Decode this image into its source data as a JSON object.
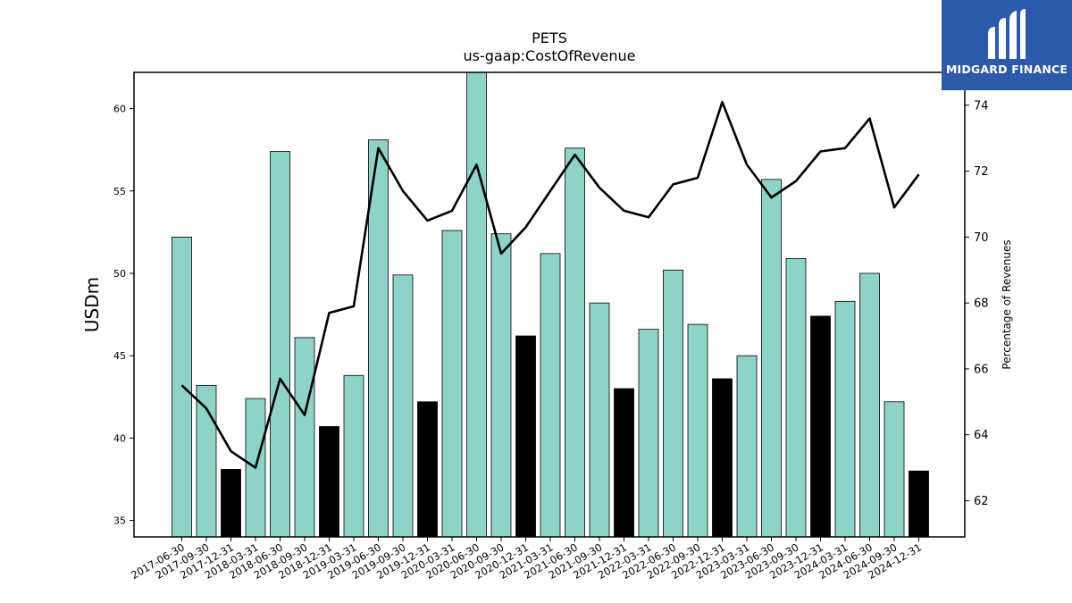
{
  "branding": {
    "logo_text": "MIDGARD FINANCE"
  },
  "chart_data": {
    "type": "bar",
    "title": "PETS",
    "subtitle": "us-gaap:CostOfRevenue",
    "ylabel": "USDm",
    "ylabel_right": "Percentage of Revenues",
    "ylim": [
      34,
      62.2
    ],
    "ylim_right": [
      60.9,
      75.0
    ],
    "yticks": [
      35,
      40,
      45,
      50,
      55,
      60
    ],
    "yticks_right": [
      62,
      64,
      66,
      68,
      70,
      72,
      74
    ],
    "grid": false,
    "colors": {
      "quarter": "#8dd3c7",
      "year_end": "#000000",
      "line": "#000000"
    },
    "categories": [
      "2017-06-30",
      "2017-09-30",
      "2017-12-31",
      "2018-03-31",
      "2018-06-30",
      "2018-09-30",
      "2018-12-31",
      "2019-03-31",
      "2019-06-30",
      "2019-09-30",
      "2019-12-31",
      "2020-03-31",
      "2020-06-30",
      "2020-09-30",
      "2020-12-31",
      "2021-03-31",
      "2021-06-30",
      "2021-09-30",
      "2021-12-31",
      "2022-03-31",
      "2022-06-30",
      "2022-09-30",
      "2022-12-31",
      "2023-03-31",
      "2023-06-30",
      "2023-09-30",
      "2023-12-31",
      "2024-03-31",
      "2024-06-30",
      "2024-09-30",
      "2024-12-31"
    ],
    "series": [
      {
        "type": "bar",
        "values": [
          52.2,
          43.2,
          38.1,
          42.4,
          57.4,
          46.1,
          40.7,
          43.8,
          58.1,
          49.9,
          42.2,
          52.6,
          62.3,
          52.4,
          46.2,
          51.2,
          57.6,
          48.2,
          43.0,
          46.6,
          50.2,
          46.9,
          43.6,
          45.0,
          55.7,
          50.9,
          47.4,
          48.3,
          50.0,
          42.2,
          38.0
        ],
        "year_end": [
          false,
          false,
          true,
          false,
          false,
          false,
          true,
          false,
          false,
          false,
          true,
          false,
          false,
          false,
          true,
          false,
          false,
          false,
          true,
          false,
          false,
          false,
          true,
          false,
          false,
          false,
          true,
          false,
          false,
          false,
          true
        ]
      },
      {
        "type": "line",
        "axis": "right",
        "values": [
          65.5,
          64.8,
          63.5,
          63.0,
          65.7,
          64.6,
          67.7,
          67.9,
          72.7,
          71.4,
          70.5,
          70.8,
          72.2,
          69.5,
          70.3,
          71.4,
          72.5,
          71.5,
          70.8,
          70.6,
          71.6,
          71.8,
          74.1,
          72.2,
          71.2,
          71.7,
          72.6,
          72.7,
          73.6,
          70.9,
          71.9
        ]
      }
    ]
  }
}
